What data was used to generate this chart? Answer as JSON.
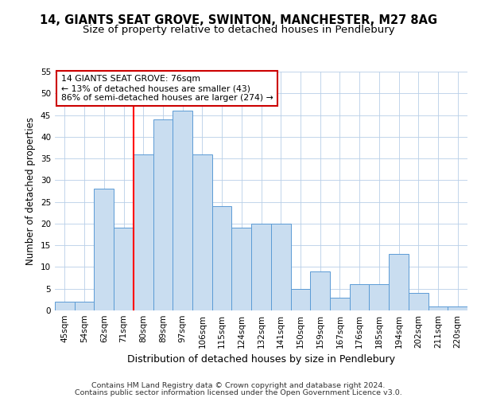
{
  "title": "14, GIANTS SEAT GROVE, SWINTON, MANCHESTER, M27 8AG",
  "subtitle": "Size of property relative to detached houses in Pendlebury",
  "xlabel": "Distribution of detached houses by size in Pendlebury",
  "ylabel": "Number of detached properties",
  "categories": [
    "45sqm",
    "54sqm",
    "62sqm",
    "71sqm",
    "80sqm",
    "89sqm",
    "97sqm",
    "106sqm",
    "115sqm",
    "124sqm",
    "132sqm",
    "141sqm",
    "150sqm",
    "159sqm",
    "167sqm",
    "176sqm",
    "185sqm",
    "194sqm",
    "202sqm",
    "211sqm",
    "220sqm"
  ],
  "values": [
    2,
    2,
    28,
    19,
    36,
    44,
    46,
    36,
    24,
    19,
    20,
    20,
    5,
    9,
    3,
    6,
    6,
    13,
    4,
    1,
    1
  ],
  "bar_color": "#c9ddf0",
  "bar_edge_color": "#5b9bd5",
  "red_line_x": 3.5,
  "ylim": [
    0,
    55
  ],
  "yticks": [
    0,
    5,
    10,
    15,
    20,
    25,
    30,
    35,
    40,
    45,
    50,
    55
  ],
  "annotation_text": "14 GIANTS SEAT GROVE: 76sqm\n← 13% of detached houses are smaller (43)\n86% of semi-detached houses are larger (274) →",
  "annotation_box_color": "#ffffff",
  "annotation_box_edgecolor": "#cc0000",
  "footer_line1": "Contains HM Land Registry data © Crown copyright and database right 2024.",
  "footer_line2": "Contains public sector information licensed under the Open Government Licence v3.0.",
  "title_fontsize": 10.5,
  "subtitle_fontsize": 9.5,
  "tick_fontsize": 7.5,
  "ylabel_fontsize": 8.5,
  "xlabel_fontsize": 9,
  "annotation_fontsize": 7.8,
  "footer_fontsize": 6.8
}
